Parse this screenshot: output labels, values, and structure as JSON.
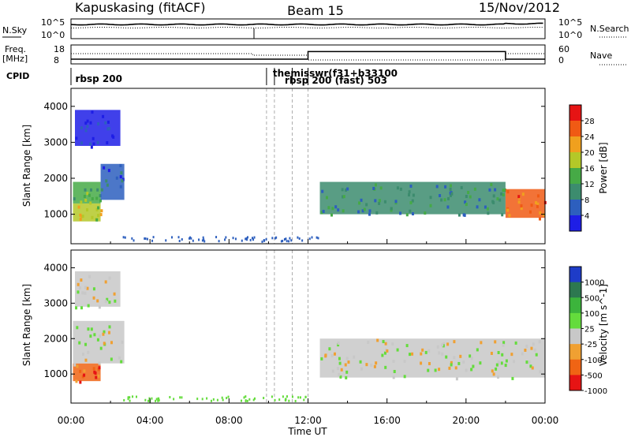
{
  "header": {
    "station": "Kapuskasing (fitACF)",
    "beam": "Beam 15",
    "date": "15/Nov/2012"
  },
  "noise_panel": {
    "left_label": "N.Sky",
    "right_label": "N.Search",
    "left_ticks": [
      "10^5",
      "10^0"
    ],
    "right_ticks": [
      "10^5",
      "10^0"
    ]
  },
  "freq_panel": {
    "left_label_1": "Freq.",
    "left_label_2": "[MHz]",
    "right_label": "Nave",
    "left_ticks": [
      "18",
      "8"
    ],
    "right_ticks": [
      "60",
      "0"
    ]
  },
  "cpid_panel": {
    "label": "CPID",
    "programs": [
      {
        "text": "rbsp  200",
        "hour": 0.1,
        "row": 0
      },
      {
        "text": "themisswr(f31+b33100",
        "hour": 10.1,
        "row": 1
      },
      {
        "text": "rbsp  200 (fast)  503",
        "hour": 10.7,
        "row": 2
      }
    ],
    "boundaries_h": [
      9.9,
      10.3,
      11.2,
      12.0
    ]
  },
  "power_panel": {
    "ylabel": "Slant Range [km]",
    "yticks": [
      "1000",
      "2000",
      "3000",
      "4000"
    ],
    "colorbar_label": "Power [dB]",
    "colorbar_ticks": [
      "4",
      "8",
      "12",
      "16",
      "20",
      "24",
      "28"
    ],
    "colors": [
      "#1e1ee6",
      "#2d5fbe",
      "#3c8c6e",
      "#46aa46",
      "#b4c828",
      "#f0a01e",
      "#f05a14",
      "#e61414"
    ]
  },
  "velocity_panel": {
    "ylabel": "Slant Range [km]",
    "yticks": [
      "1000",
      "2000",
      "3000",
      "4000"
    ],
    "colorbar_label": "Velocity [m s^-1]",
    "colorbar_ticks": [
      "1000",
      "500",
      "100",
      "25",
      "-25",
      "-100",
      "-500",
      "-1000"
    ],
    "colors": [
      "#1e3cc8",
      "#2d7850",
      "#3cb43c",
      "#64dc3c",
      "#c8c8c8",
      "#f0a032",
      "#f06414",
      "#e61414"
    ]
  },
  "time_axis": {
    "ticks": [
      "00:00",
      "04:00",
      "08:00",
      "12:00",
      "16:00",
      "20:00",
      "00:00"
    ],
    "label": "Time UT"
  },
  "chart_data": {
    "type": "heatmap",
    "x_range_hours": [
      0,
      24
    ],
    "y_range_km": [
      180,
      4500
    ],
    "frequency_mhz": [
      {
        "t0": 0,
        "t1": 9.2,
        "value": 10.5
      },
      {
        "t0": 9.2,
        "t1": 12.0,
        "value": 10.5
      },
      {
        "t0": 12.0,
        "t1": 22.0,
        "value": 14.5
      },
      {
        "t0": 22.0,
        "t1": 24,
        "value": 10.5
      }
    ],
    "power_regions": [
      {
        "t0": 0.1,
        "t1": 1.5,
        "r0": 800,
        "r1": 1300,
        "level": 4
      },
      {
        "t0": 0.1,
        "t1": 1.5,
        "r0": 1300,
        "r1": 1900,
        "level": 3
      },
      {
        "t0": 1.5,
        "t1": 2.7,
        "r0": 1400,
        "r1": 2400,
        "level": 1
      },
      {
        "t0": 0.2,
        "t1": 2.5,
        "r0": 2900,
        "r1": 3900,
        "level": 0
      },
      {
        "t0": 12.6,
        "t1": 22.0,
        "r0": 1000,
        "r1": 1900,
        "level": 2
      },
      {
        "t0": 22.0,
        "t1": 24,
        "r0": 900,
        "r1": 1700,
        "level": 6
      }
    ],
    "velocity_regions": [
      {
        "t0": 0.1,
        "t1": 1.5,
        "r0": 800,
        "r1": 1300,
        "level": 6
      },
      {
        "t0": 0.1,
        "t1": 2.7,
        "r0": 1300,
        "r1": 2500,
        "level": 4
      },
      {
        "t0": 0.2,
        "t1": 2.5,
        "r0": 2900,
        "r1": 3900,
        "level": 4
      },
      {
        "t0": 12.6,
        "t1": 24,
        "r0": 900,
        "r1": 2000,
        "level": 4
      }
    ]
  }
}
